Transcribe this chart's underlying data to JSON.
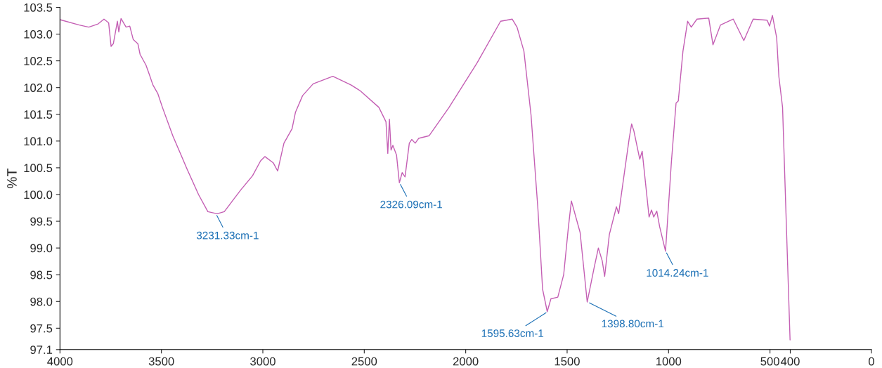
{
  "chart_data": {
    "type": "line",
    "ylabel": "%T",
    "xlim": [
      4000,
      0
    ],
    "ylim": [
      97.1,
      103.5
    ],
    "xticks": [
      4000,
      3500,
      3000,
      2500,
      2000,
      1500,
      1000,
      500,
      400,
      0
    ],
    "yticks": [
      97.1,
      97.5,
      {
        "value": 98.0,
        "label": "98.0"
      },
      98.5,
      {
        "value": 99.0,
        "label": "99.0"
      },
      99.5,
      {
        "value": 100.0,
        "label": "100.0"
      },
      100.5,
      {
        "value": 101.0,
        "label": "101.0"
      },
      101.5,
      {
        "value": 102.0,
        "label": "102.0"
      },
      102.5,
      {
        "value": 103.0,
        "label": "103.0"
      },
      103.5
    ],
    "grid": false,
    "legend": false,
    "marker": "none",
    "line_style": "solid",
    "series": [
      {
        "color": "#c45fb4",
        "x": [
          4000,
          3905,
          3858,
          3812,
          3783,
          3760,
          3748,
          3737,
          3717,
          3710,
          3699,
          3674,
          3656,
          3639,
          3616,
          3605,
          3576,
          3559,
          3542,
          3518,
          3495,
          3444,
          3374,
          3317,
          3271,
          3225,
          3190,
          3110,
          3051,
          3011,
          2990,
          2948,
          2927,
          2896,
          2856,
          2839,
          2804,
          2752,
          2655,
          2566,
          2520,
          2428,
          2393,
          2384,
          2376,
          2368,
          2359,
          2341,
          2327,
          2313,
          2299,
          2278,
          2266,
          2249,
          2232,
          2180,
          2082,
          1944,
          1828,
          1771,
          1747,
          1713,
          1678,
          1644,
          1621,
          1598,
          1580,
          1546,
          1517,
          1494,
          1479,
          1436,
          1401,
          1367,
          1346,
          1327,
          1315,
          1292,
          1257,
          1246,
          1194,
          1182,
          1171,
          1142,
          1130,
          1096,
          1084,
          1073,
          1058,
          1044,
          1015,
          986,
          963,
          952,
          929,
          906,
          888,
          860,
          802,
          781,
          744,
          681,
          629,
          583,
          514,
          502,
          488,
          467,
          456,
          438,
          401
        ],
        "values": [
          103.27,
          103.17,
          103.13,
          103.19,
          103.28,
          103.21,
          102.77,
          102.82,
          103.24,
          103.04,
          103.29,
          103.13,
          103.15,
          102.9,
          102.82,
          102.62,
          102.42,
          102.24,
          102.05,
          101.89,
          101.63,
          101.1,
          100.48,
          100.0,
          99.68,
          99.64,
          99.68,
          100.08,
          100.35,
          100.63,
          100.71,
          100.59,
          100.44,
          100.96,
          101.23,
          101.54,
          101.85,
          102.07,
          102.21,
          102.05,
          101.94,
          101.63,
          101.36,
          100.77,
          101.41,
          100.83,
          100.92,
          100.74,
          100.22,
          100.41,
          100.33,
          100.96,
          101.03,
          100.96,
          101.05,
          101.1,
          101.63,
          102.46,
          103.24,
          103.28,
          103.13,
          102.68,
          101.49,
          99.73,
          98.23,
          97.81,
          98.05,
          98.08,
          98.5,
          99.38,
          99.88,
          99.29,
          97.99,
          98.63,
          99.0,
          98.76,
          98.47,
          99.25,
          99.77,
          99.64,
          101.05,
          101.32,
          101.19,
          100.66,
          100.81,
          99.58,
          99.71,
          99.58,
          99.69,
          99.4,
          98.94,
          100.61,
          101.71,
          101.75,
          102.68,
          103.24,
          103.13,
          103.28,
          103.3,
          102.8,
          103.17,
          103.28,
          102.88,
          103.28,
          103.26,
          103.15,
          103.35,
          102.93,
          102.2,
          101.63,
          97.28
        ]
      }
    ],
    "annotations": [
      {
        "text": "3231.33cm-1",
        "x": 3231.33,
        "y": 99.64
      },
      {
        "text": "2326.09cm-1",
        "x": 2326.09,
        "y": 100.22
      },
      {
        "text": "1595.63cm-1",
        "x": 1595.63,
        "y": 97.81
      },
      {
        "text": "1398.80cm-1",
        "x": 1398.8,
        "y": 97.99
      },
      {
        "text": "1014.24cm-1",
        "x": 1014.24,
        "y": 98.94
      }
    ]
  }
}
